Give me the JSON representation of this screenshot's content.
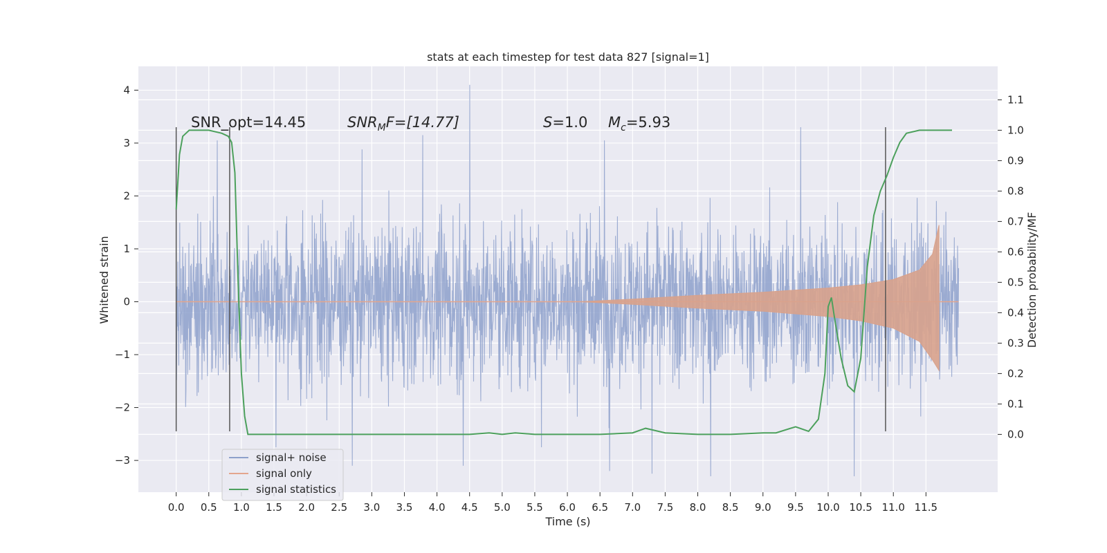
{
  "chart_data": {
    "type": "line",
    "title": "stats at each timestep for test data 827 [signal=1]",
    "xlabel": "Time (s)",
    "ylabel": "Whitened strain",
    "y2label": "Detection probability/MF",
    "xlim": [
      -0.58,
      12.6
    ],
    "ylim": [
      -3.6,
      4.45
    ],
    "y2lim": [
      -0.19,
      1.21
    ],
    "x_ticks": [
      "0.0",
      "0.5",
      "1.0",
      "1.5",
      "2.0",
      "2.5",
      "3.0",
      "3.5",
      "4.0",
      "4.5",
      "5.0",
      "5.5",
      "6.0",
      "6.5",
      "7.0",
      "7.5",
      "8.0",
      "8.5",
      "9.0",
      "9.5",
      "10.0",
      "10.5",
      "11.0",
      "11.5"
    ],
    "y_ticks": [
      "4",
      "3",
      "2",
      "1",
      "0",
      "−1",
      "−2",
      "−3"
    ],
    "y2_ticks": [
      "1.1",
      "1.0",
      "0.9",
      "0.8",
      "0.7",
      "0.6",
      "0.5",
      "0.4",
      "0.3",
      "0.2",
      "0.1",
      "0.0"
    ],
    "grid": true,
    "legend_position": "lower-left",
    "annotations": {
      "snr_opt": "SNR_opt=14.45",
      "snr_mf_sym": "SNR",
      "snr_mf_sub": "M",
      "snr_mf_rest": "F=[14.77]",
      "s_sym": "S",
      "s_rest": "=1.0",
      "mc_sym": "M",
      "mc_sub": "c",
      "mc_rest": "=5.93"
    },
    "vlines": [
      0.0,
      0.82,
      10.88
    ],
    "vline_range": [
      -2.45,
      3.3
    ],
    "series": [
      {
        "name": "signal+ noise",
        "color": "#8da0cb",
        "axis": "left",
        "noise_envelope": {
          "x_range": [
            0.0,
            12.0
          ],
          "core_sigma": 0.75,
          "max_spikes": [
            [
              4.5,
              4.1
            ],
            [
              9.58,
              3.3
            ],
            [
              6.57,
              3.05
            ],
            [
              0.63,
              3.05
            ],
            [
              2.85,
              2.88
            ],
            [
              3.78,
              3.15
            ]
          ],
          "min_spikes": [
            [
              1.53,
              -2.75
            ],
            [
              5.6,
              -2.75
            ],
            [
              6.65,
              -3.2
            ],
            [
              7.3,
              -3.25
            ],
            [
              8.2,
              -3.3
            ],
            [
              10.4,
              -3.3
            ],
            [
              2.7,
              -3.1
            ],
            [
              4.4,
              -3.1
            ]
          ]
        }
      },
      {
        "name": "signal only",
        "color": "#d8a28c",
        "axis": "left",
        "chirp_envelope": {
          "x": [
            6.2,
            7.0,
            8.0,
            9.0,
            10.0,
            10.5,
            11.0,
            11.4,
            11.6,
            11.7
          ],
          "amp": [
            0.0,
            0.05,
            0.12,
            0.18,
            0.26,
            0.32,
            0.42,
            0.6,
            0.9,
            1.45
          ],
          "lower_amp": [
            0.0,
            0.05,
            0.12,
            0.18,
            0.28,
            0.36,
            0.5,
            0.75,
            1.1,
            1.3
          ]
        }
      },
      {
        "name": "signal statistics",
        "color": "#4ca05c",
        "axis": "right",
        "x": [
          0.0,
          0.05,
          0.1,
          0.2,
          0.3,
          0.5,
          0.7,
          0.8,
          0.85,
          0.9,
          0.95,
          1.0,
          1.05,
          1.1,
          1.2,
          2.0,
          3.0,
          4.0,
          4.5,
          4.8,
          5.0,
          5.2,
          5.5,
          6.0,
          6.5,
          7.0,
          7.2,
          7.5,
          8.0,
          8.5,
          9.0,
          9.2,
          9.5,
          9.7,
          9.85,
          9.95,
          10.0,
          10.05,
          10.1,
          10.2,
          10.3,
          10.4,
          10.5,
          10.6,
          10.7,
          10.8,
          10.9,
          11.0,
          11.1,
          11.2,
          11.4,
          11.6,
          11.9
        ],
        "y": [
          0.74,
          0.92,
          0.98,
          1.0,
          1.0,
          1.0,
          0.99,
          0.98,
          0.96,
          0.86,
          0.5,
          0.2,
          0.06,
          0.0,
          0.0,
          0.0,
          0.0,
          0.0,
          0.0,
          0.005,
          0.0,
          0.005,
          0.0,
          0.0,
          0.0,
          0.005,
          0.02,
          0.005,
          0.0,
          0.0,
          0.005,
          0.005,
          0.025,
          0.01,
          0.05,
          0.2,
          0.42,
          0.45,
          0.38,
          0.25,
          0.16,
          0.14,
          0.25,
          0.55,
          0.72,
          0.8,
          0.85,
          0.91,
          0.96,
          0.99,
          1.0,
          1.0,
          1.0
        ]
      }
    ]
  }
}
